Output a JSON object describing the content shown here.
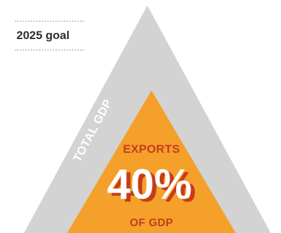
{
  "legend": {
    "label": "2025 goal"
  },
  "outer": {
    "label": "TOTAL GDP",
    "color": "#d3d3d3",
    "label_color": "#ffffff"
  },
  "inner": {
    "top_label": "EXPORTS",
    "value": "40%",
    "bottom_label": "OF GDP",
    "color": "#f4a02a",
    "text_color": "#c43d1b",
    "value_fill": "#ffffff",
    "value_shadow": "#c43d1b"
  }
}
